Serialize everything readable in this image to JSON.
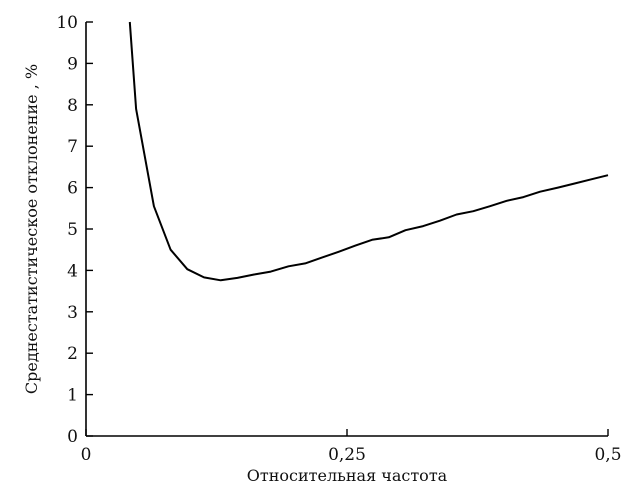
{
  "chart_data": {
    "type": "line",
    "title": "",
    "xlabel": "Относительная частота",
    "ylabel": "Среднестатистическое отклонение , %",
    "xlim": [
      0,
      0.5
    ],
    "ylim": [
      0,
      10
    ],
    "x_ticks": [
      0,
      0.25,
      0.5
    ],
    "x_tick_labels": [
      "0",
      "0,25",
      "0,5"
    ],
    "y_ticks": [
      0,
      1,
      2,
      3,
      4,
      5,
      6,
      7,
      8,
      9,
      10
    ],
    "y_tick_labels": [
      "0",
      "1",
      "2",
      "3",
      "4",
      "5",
      "6",
      "7",
      "8",
      "9",
      "10"
    ],
    "grid": false,
    "legend": "none",
    "line_color": "#000000",
    "series": [
      {
        "x": [
          0.042,
          0.048,
          0.065,
          0.081,
          0.097,
          0.113,
          0.129,
          0.145,
          0.161,
          0.177,
          0.194,
          0.21,
          0.226,
          0.242,
          0.258,
          0.274,
          0.29,
          0.306,
          0.323,
          0.339,
          0.355,
          0.371,
          0.387,
          0.403,
          0.419,
          0.435,
          0.452,
          0.468,
          0.484,
          0.5
        ],
        "y": [
          10.0,
          7.9,
          5.55,
          4.5,
          4.03,
          3.83,
          3.76,
          3.82,
          3.9,
          3.97,
          4.1,
          4.17,
          4.31,
          4.45,
          4.6,
          4.74,
          4.8,
          4.97,
          5.07,
          5.2,
          5.35,
          5.43,
          5.55,
          5.68,
          5.77,
          5.9,
          6.0,
          6.1,
          6.2,
          6.3
        ]
      }
    ]
  }
}
